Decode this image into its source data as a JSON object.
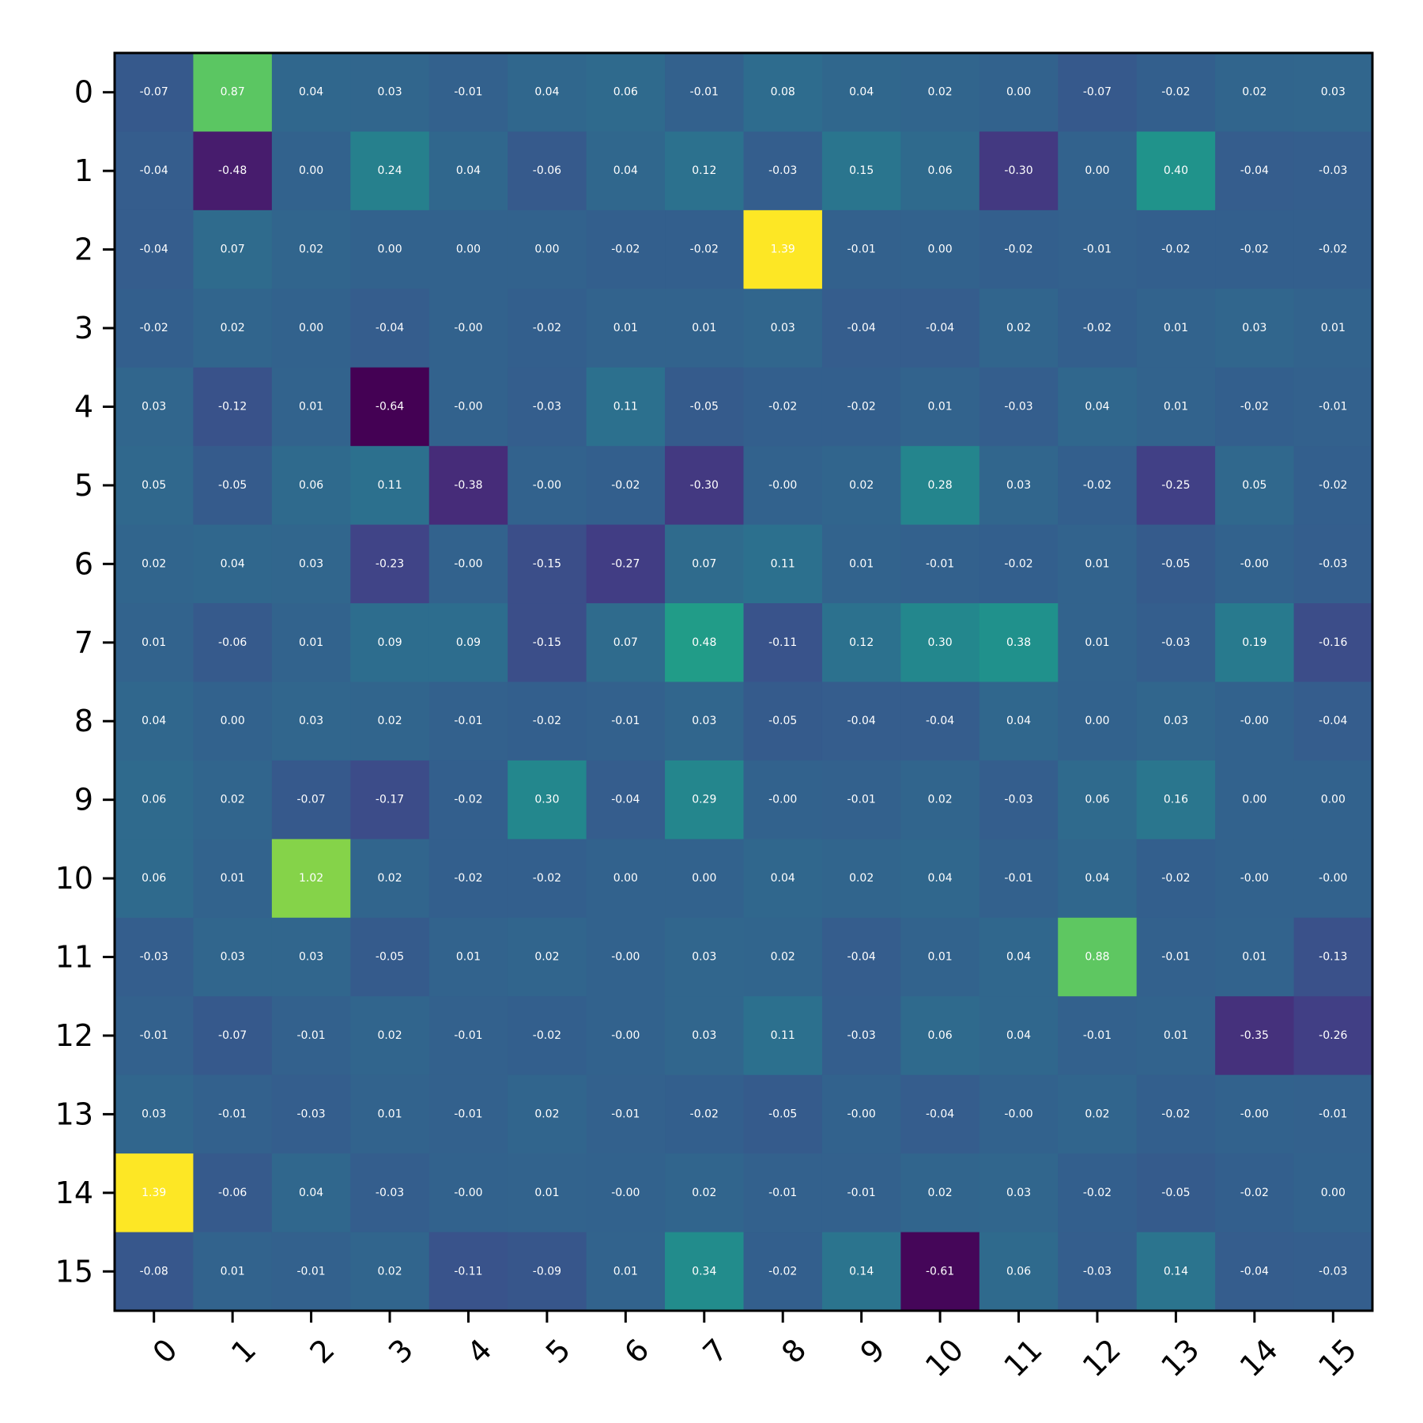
{
  "chart_data": {
    "type": "heatmap",
    "title": "",
    "xlabel": "",
    "ylabel": "",
    "x_ticks": [
      "0",
      "1",
      "2",
      "3",
      "4",
      "5",
      "6",
      "7",
      "8",
      "9",
      "10",
      "11",
      "12",
      "13",
      "14",
      "15"
    ],
    "y_ticks": [
      "0",
      "1",
      "2",
      "3",
      "4",
      "5",
      "6",
      "7",
      "8",
      "9",
      "10",
      "11",
      "12",
      "13",
      "14",
      "15"
    ],
    "colormap": "viridis",
    "vmin": -0.64,
    "vmax": 1.39,
    "grid": false,
    "cell_labels": [
      [
        "-0.07",
        "0.87",
        "0.04",
        "0.03",
        "-0.01",
        "0.04",
        "0.06",
        "-0.01",
        "0.08",
        "0.04",
        "0.02",
        "0.00",
        "-0.07",
        "-0.02",
        "0.02",
        "0.03"
      ],
      [
        "-0.04",
        "-0.48",
        "0.00",
        "0.24",
        "0.04",
        "-0.06",
        "0.04",
        "0.12",
        "-0.03",
        "0.15",
        "0.06",
        "-0.30",
        "0.00",
        "0.40",
        "-0.04",
        "-0.03"
      ],
      [
        "-0.04",
        "0.07",
        "0.02",
        "0.00",
        "0.00",
        "0.00",
        "-0.02",
        "-0.02",
        "1.39",
        "-0.01",
        "0.00",
        "-0.02",
        "-0.01",
        "-0.02",
        "-0.02",
        "-0.02"
      ],
      [
        "-0.02",
        "0.02",
        "0.00",
        "-0.04",
        "-0.00",
        "-0.02",
        "0.01",
        "0.01",
        "0.03",
        "-0.04",
        "-0.04",
        "0.02",
        "-0.02",
        "0.01",
        "0.03",
        "0.01"
      ],
      [
        "0.03",
        "-0.12",
        "0.01",
        "-0.64",
        "-0.00",
        "-0.03",
        "0.11",
        "-0.05",
        "-0.02",
        "-0.02",
        "0.01",
        "-0.03",
        "0.04",
        "0.01",
        "-0.02",
        "-0.01"
      ],
      [
        "0.05",
        "-0.05",
        "0.06",
        "0.11",
        "-0.38",
        "-0.00",
        "-0.02",
        "-0.30",
        "-0.00",
        "0.02",
        "0.28",
        "0.03",
        "-0.02",
        "-0.25",
        "0.05",
        "-0.02"
      ],
      [
        "0.02",
        "0.04",
        "0.03",
        "-0.23",
        "-0.00",
        "-0.15",
        "-0.27",
        "0.07",
        "0.11",
        "0.01",
        "-0.01",
        "-0.02",
        "0.01",
        "-0.05",
        "-0.00",
        "-0.03"
      ],
      [
        "0.01",
        "-0.06",
        "0.01",
        "0.09",
        "0.09",
        "-0.15",
        "0.07",
        "0.48",
        "-0.11",
        "0.12",
        "0.30",
        "0.38",
        "0.01",
        "-0.03",
        "0.19",
        "-0.16"
      ],
      [
        "0.04",
        "0.00",
        "0.03",
        "0.02",
        "-0.01",
        "-0.02",
        "-0.01",
        "0.03",
        "-0.05",
        "-0.04",
        "-0.04",
        "0.04",
        "0.00",
        "0.03",
        "-0.00",
        "-0.04"
      ],
      [
        "0.06",
        "0.02",
        "-0.07",
        "-0.17",
        "-0.02",
        "0.30",
        "-0.04",
        "0.29",
        "-0.00",
        "-0.01",
        "0.02",
        "-0.03",
        "0.06",
        "0.16",
        "0.00",
        "0.00"
      ],
      [
        "0.06",
        "0.01",
        "1.02",
        "0.02",
        "-0.02",
        "-0.02",
        "0.00",
        "0.00",
        "0.04",
        "0.02",
        "0.04",
        "-0.01",
        "0.04",
        "-0.02",
        "-0.00",
        "-0.00"
      ],
      [
        "-0.03",
        "0.03",
        "0.03",
        "-0.05",
        "0.01",
        "0.02",
        "-0.00",
        "0.03",
        "0.02",
        "-0.04",
        "0.01",
        "0.04",
        "0.88",
        "-0.01",
        "0.01",
        "-0.13"
      ],
      [
        "-0.01",
        "-0.07",
        "-0.01",
        "0.02",
        "-0.01",
        "-0.02",
        "-0.00",
        "0.03",
        "0.11",
        "-0.03",
        "0.06",
        "0.04",
        "-0.01",
        "0.01",
        "-0.35",
        "-0.26"
      ],
      [
        "0.03",
        "-0.01",
        "-0.03",
        "0.01",
        "-0.01",
        "0.02",
        "-0.01",
        "-0.02",
        "-0.05",
        "-0.00",
        "-0.04",
        "-0.00",
        "0.02",
        "-0.02",
        "-0.00",
        "-0.01"
      ],
      [
        "1.39",
        "-0.06",
        "0.04",
        "-0.03",
        "-0.00",
        "0.01",
        "-0.00",
        "0.02",
        "-0.01",
        "-0.01",
        "0.02",
        "0.03",
        "-0.02",
        "-0.05",
        "-0.02",
        "0.00"
      ],
      [
        "-0.08",
        "0.01",
        "-0.01",
        "0.02",
        "-0.11",
        "-0.09",
        "0.01",
        "0.34",
        "-0.02",
        "0.14",
        "-0.61",
        "0.06",
        "-0.03",
        "0.14",
        "-0.04",
        "-0.03"
      ]
    ]
  }
}
